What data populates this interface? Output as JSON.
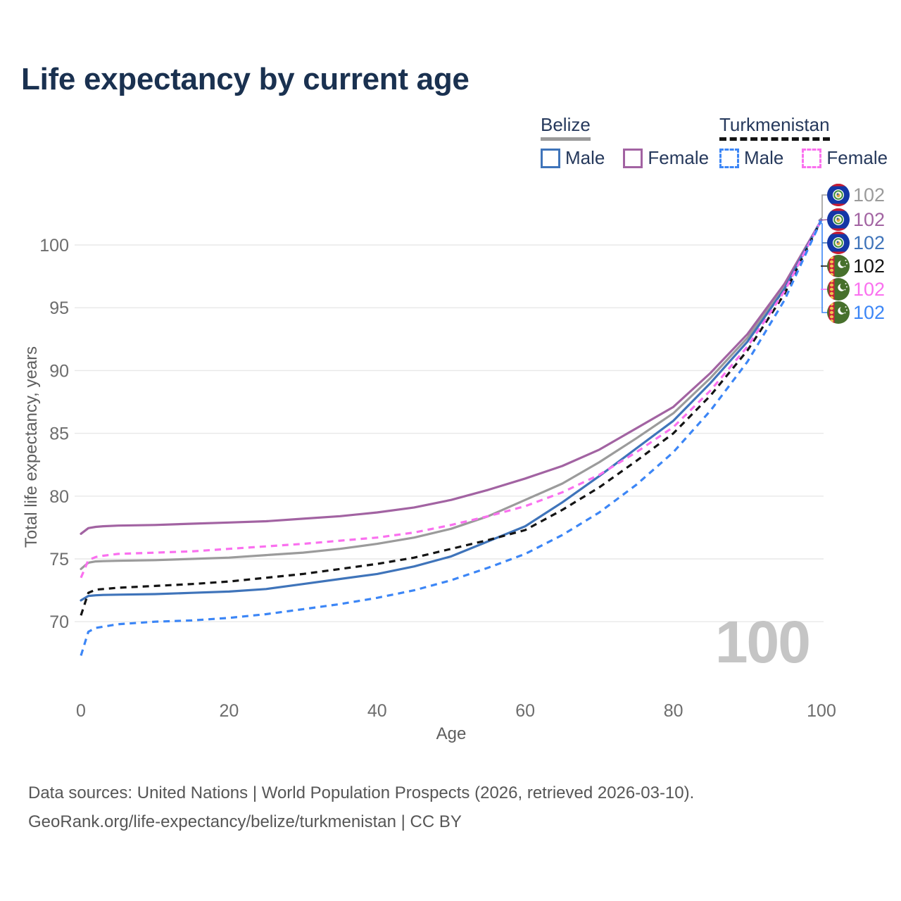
{
  "title": "Life expectancy by current age",
  "legend": {
    "groups": [
      {
        "id": "belize",
        "label": "Belize",
        "underline_style": "solid",
        "underline_color": "#9b9b9b",
        "items": [
          {
            "id": "belize-male",
            "label": "Male",
            "swatch_color": "#3f74ba",
            "swatch_style": "solid"
          },
          {
            "id": "belize-female",
            "label": "Female",
            "swatch_color": "#a263a2",
            "swatch_style": "solid"
          }
        ]
      },
      {
        "id": "turkmenistan",
        "label": "Turkmenistan",
        "underline_style": "dashed",
        "underline_color": "#141414",
        "items": [
          {
            "id": "turkmenistan-male",
            "label": "Male",
            "swatch_color": "#3c86f6",
            "swatch_style": "dashed"
          },
          {
            "id": "turkmenistan-female",
            "label": "Female",
            "swatch_color": "#fa70ef",
            "swatch_style": "dashed"
          }
        ]
      }
    ]
  },
  "chart_data": {
    "type": "line",
    "title": "Life expectancy by current age",
    "xlabel": "Age",
    "ylabel": "Total life expectancy, years",
    "xlim": [
      0,
      100
    ],
    "ylim": [
      66,
      103
    ],
    "x_ticks": [
      0,
      20,
      40,
      60,
      80,
      100
    ],
    "y_ticks": [
      70,
      75,
      80,
      85,
      90,
      95,
      100
    ],
    "grid": "horizontal",
    "legend_position": "top-right",
    "x": [
      0,
      1,
      2,
      3,
      5,
      10,
      15,
      20,
      25,
      30,
      35,
      40,
      45,
      50,
      55,
      60,
      65,
      70,
      75,
      80,
      85,
      90,
      95,
      100
    ],
    "series": [
      {
        "id": "belize-all",
        "name": "Belize",
        "color": "#9b9b9b",
        "dash": false,
        "values": [
          74.2,
          74.7,
          74.8,
          74.82,
          74.85,
          74.9,
          75.0,
          75.1,
          75.3,
          75.5,
          75.8,
          76.2,
          76.7,
          77.4,
          78.4,
          79.7,
          81.0,
          82.7,
          84.6,
          86.6,
          89.4,
          92.6,
          96.7,
          102
        ]
      },
      {
        "id": "belize-female",
        "name": "Belize Female",
        "color": "#a263a2",
        "dash": false,
        "values": [
          77.0,
          77.45,
          77.55,
          77.6,
          77.65,
          77.7,
          77.8,
          77.9,
          78.0,
          78.2,
          78.4,
          78.7,
          79.1,
          79.7,
          80.5,
          81.4,
          82.4,
          83.7,
          85.4,
          87.1,
          89.8,
          92.9,
          96.9,
          102
        ]
      },
      {
        "id": "belize-male",
        "name": "Belize Male",
        "color": "#3f74ba",
        "dash": false,
        "values": [
          71.7,
          72.05,
          72.1,
          72.13,
          72.15,
          72.2,
          72.3,
          72.4,
          72.6,
          73.0,
          73.4,
          73.8,
          74.4,
          75.2,
          76.4,
          77.6,
          79.5,
          81.6,
          83.8,
          86.0,
          89.0,
          92.3,
          96.5,
          102
        ]
      },
      {
        "id": "turkmenistan-all",
        "name": "Turkmenistan",
        "color": "#141414",
        "dash": true,
        "values": [
          70.5,
          72.3,
          72.55,
          72.6,
          72.7,
          72.85,
          73.0,
          73.2,
          73.5,
          73.8,
          74.2,
          74.6,
          75.1,
          75.8,
          76.5,
          77.3,
          78.9,
          80.7,
          82.8,
          85.0,
          88.0,
          91.6,
          96.1,
          102
        ]
      },
      {
        "id": "turkmenistan-female",
        "name": "Turkmenistan Female",
        "color": "#fa70ef",
        "dash": true,
        "values": [
          73.5,
          74.9,
          75.15,
          75.25,
          75.4,
          75.5,
          75.6,
          75.8,
          76.0,
          76.2,
          76.45,
          76.7,
          77.1,
          77.7,
          78.4,
          79.2,
          80.3,
          81.7,
          83.5,
          85.5,
          88.4,
          91.9,
          96.3,
          102
        ]
      },
      {
        "id": "turkmenistan-male",
        "name": "Turkmenistan Male",
        "color": "#3c86f6",
        "dash": true,
        "values": [
          67.3,
          69.2,
          69.5,
          69.6,
          69.8,
          70.0,
          70.1,
          70.3,
          70.6,
          71.0,
          71.4,
          71.9,
          72.5,
          73.3,
          74.3,
          75.4,
          76.9,
          78.7,
          80.9,
          83.5,
          86.8,
          90.7,
          95.6,
          102
        ]
      }
    ],
    "end_labels": [
      {
        "id": "belize-all",
        "flag": "belize",
        "color": "#9b9b9b",
        "value": "102"
      },
      {
        "id": "belize-female",
        "flag": "belize",
        "color": "#a263a2",
        "value": "102"
      },
      {
        "id": "belize-male",
        "flag": "belize",
        "color": "#3f74ba",
        "value": "102"
      },
      {
        "id": "turkmenistan-all",
        "flag": "turkmenistan",
        "color": "#141414",
        "value": "102"
      },
      {
        "id": "turkmenistan-female",
        "flag": "turkmenistan",
        "color": "#fa70ef",
        "value": "102"
      },
      {
        "id": "turkmenistan-male",
        "flag": "turkmenistan",
        "color": "#3c86f6",
        "value": "102"
      }
    ]
  },
  "watermark": "100",
  "footer": {
    "line1": "Data sources: United Nations | World Population Prospects (2026, retrieved 2026-03-10).",
    "line2": "GeoRank.org/life-expectancy/belize/turkmenistan | CC BY"
  }
}
